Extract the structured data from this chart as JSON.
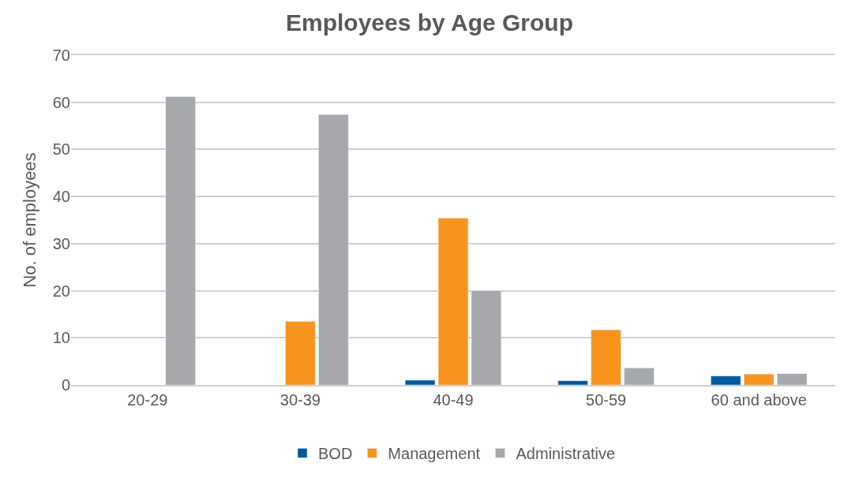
{
  "chart_data": {
    "type": "bar",
    "title": "Employees by Age Group",
    "ylabel": "No. of employees",
    "categories": [
      "20-29",
      "30-39",
      "40-49",
      "50-59",
      "60 and above"
    ],
    "series": [
      {
        "name": "BOD",
        "color": "#005a9c",
        "values": [
          null,
          null,
          1,
          0.9,
          1.9
        ]
      },
      {
        "name": "Management",
        "color": "#f7941d",
        "values": [
          null,
          13.5,
          35.4,
          11.7,
          2.3
        ]
      },
      {
        "name": "Administrative",
        "color": "#a7a8ab",
        "values": [
          61.2,
          57.4,
          20,
          3.6,
          2.4
        ]
      }
    ],
    "ylim": [
      0,
      70
    ],
    "yticks": [
      0,
      10,
      20,
      30,
      40,
      50,
      60,
      70
    ],
    "grid": "y",
    "legend": "bottom"
  }
}
